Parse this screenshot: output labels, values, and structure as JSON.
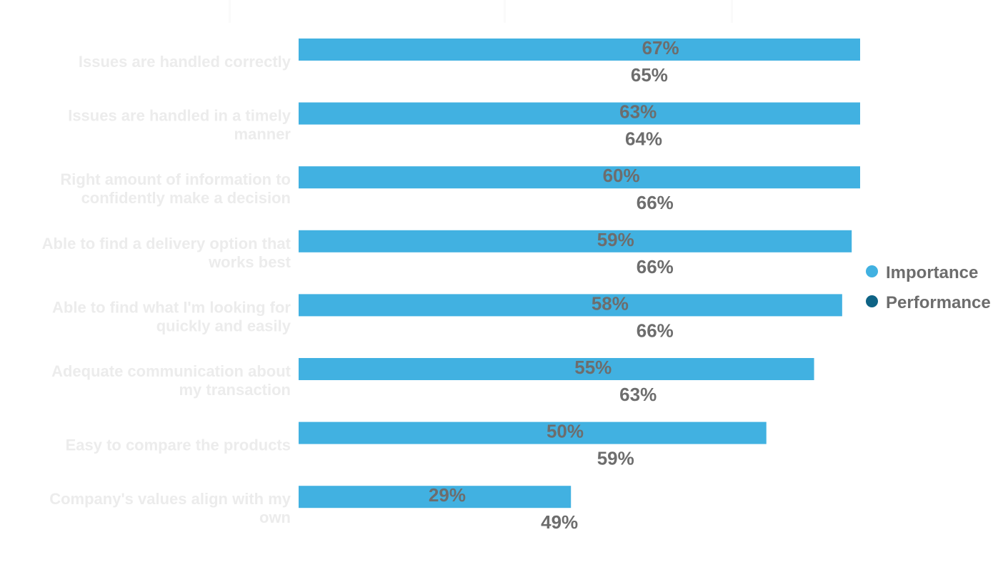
{
  "chart_data": {
    "type": "bar",
    "orientation": "horizontal",
    "categories": [
      "Issues are handled correctly",
      "Issues are handled in a timely manner",
      "Right amount of information to confidently make a decision",
      "Able to find a delivery option that works best",
      "Able to find what I'm looking for quickly and easily",
      "Adequate communication about my transaction",
      "Easy to compare the products",
      "Company's values align with my own"
    ],
    "category_lines": [
      [
        "Issues are handled correctly"
      ],
      [
        "Issues are handled in a timely",
        "manner"
      ],
      [
        "Right amount of information to",
        "confidently make a decision"
      ],
      [
        "Able to find a delivery option that",
        "works best"
      ],
      [
        "Able to find what I'm looking for",
        "quickly and easily"
      ],
      [
        "Adequate communication about",
        "my transaction"
      ],
      [
        "Easy to compare the products"
      ],
      [
        "Company's values align with my",
        "own"
      ]
    ],
    "series": [
      {
        "name": "Importance",
        "color": "#41b1e1",
        "values": [
          67,
          63,
          60,
          59,
          58,
          55,
          50,
          29
        ],
        "labels": [
          "67%",
          "63%",
          "60%",
          "59%",
          "58%",
          "55%",
          "50%",
          "29%"
        ]
      },
      {
        "name": "Performance",
        "color": "#0e6385",
        "values": [
          65,
          64,
          66,
          66,
          66,
          63,
          59,
          49
        ],
        "labels": [
          "65%",
          "64%",
          "66%",
          "66%",
          "66%",
          "63%",
          "59%",
          "49%"
        ]
      }
    ],
    "bar_lengths": [
      100,
      100,
      100,
      98.5,
      96.8,
      91.8,
      83.3,
      48.5
    ],
    "legend_position": "right",
    "grid": false
  },
  "legend": [
    {
      "label": "Importance",
      "color": "#41b1e1"
    },
    {
      "label": "Performance",
      "color": "#0e6385"
    }
  ]
}
